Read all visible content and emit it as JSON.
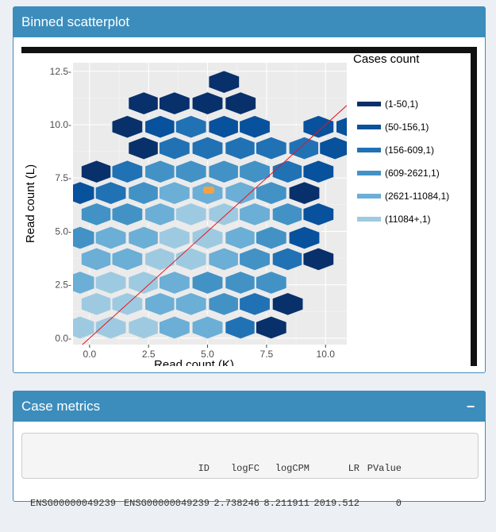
{
  "box1": {
    "title": "Binned scatterplot"
  },
  "chart_data": {
    "type": "hexbin",
    "xlabel": "Read count (K)",
    "ylabel": "Read count (L)",
    "xlim": [
      -0.7,
      10.9
    ],
    "ylim": [
      -0.3,
      12.9
    ],
    "xticks": [
      0.0,
      2.5,
      5.0,
      7.5,
      10.0
    ],
    "yticks": [
      0.0,
      2.5,
      5.0,
      7.5,
      10.0,
      12.5
    ],
    "xtick_labels": [
      "0.0",
      "2.5",
      "5.0",
      "7.5",
      "10.0"
    ],
    "ytick_labels": [
      "0.0-",
      "2.5-",
      "5.0-",
      "7.5-",
      "10.0-",
      "12.5-"
    ],
    "grid": true,
    "panel_color": "#ebebeb",
    "legend": {
      "title": "Cases count",
      "position": "right",
      "labels": [
        "(1-50,1)",
        "(50-156,1)",
        "(156-609,1)",
        "(609-2621,1)",
        "(2621-11084,1)",
        "(11084+,1)"
      ],
      "colors": [
        "#08306b",
        "#08519c",
        "#2171b5",
        "#4292c6",
        "#6baed6",
        "#9ecae1"
      ]
    },
    "reference_line": {
      "intercept": 0,
      "slope": 1,
      "color": "#e8141e"
    },
    "highlight_point": {
      "x": 5.05,
      "y": 6.95,
      "color": "#f5a142"
    },
    "hexbins": [
      [
        -0.4,
        0.5,
        5
      ],
      [
        0.9,
        0.5,
        5
      ],
      [
        2.3,
        0.5,
        5
      ],
      [
        3.6,
        0.5,
        4
      ],
      [
        5.0,
        0.5,
        4
      ],
      [
        6.4,
        0.5,
        2
      ],
      [
        7.7,
        0.5,
        0
      ],
      [
        0.3,
        1.6,
        5
      ],
      [
        1.6,
        1.6,
        5
      ],
      [
        3.0,
        1.6,
        4
      ],
      [
        4.3,
        1.6,
        4
      ],
      [
        5.7,
        1.6,
        3
      ],
      [
        7.0,
        1.6,
        2
      ],
      [
        8.4,
        1.6,
        0
      ],
      [
        -0.4,
        2.6,
        4
      ],
      [
        0.9,
        2.6,
        5
      ],
      [
        2.3,
        2.6,
        5
      ],
      [
        3.6,
        2.6,
        4
      ],
      [
        5.0,
        2.6,
        3
      ],
      [
        6.4,
        2.6,
        3
      ],
      [
        7.7,
        2.6,
        3
      ],
      [
        0.3,
        3.7,
        4
      ],
      [
        1.6,
        3.7,
        4
      ],
      [
        3.0,
        3.7,
        5
      ],
      [
        4.3,
        3.7,
        5
      ],
      [
        5.7,
        3.7,
        4
      ],
      [
        7.0,
        3.7,
        3
      ],
      [
        8.4,
        3.7,
        2
      ],
      [
        9.7,
        3.7,
        0
      ],
      [
        -0.4,
        4.7,
        3
      ],
      [
        0.9,
        4.7,
        4
      ],
      [
        2.3,
        4.7,
        4
      ],
      [
        3.6,
        4.7,
        5
      ],
      [
        5.0,
        4.7,
        5
      ],
      [
        6.4,
        4.7,
        4
      ],
      [
        7.7,
        4.7,
        3
      ],
      [
        9.1,
        4.7,
        1
      ],
      [
        0.3,
        5.8,
        3
      ],
      [
        1.6,
        5.8,
        3
      ],
      [
        3.0,
        5.8,
        4
      ],
      [
        4.3,
        5.8,
        5
      ],
      [
        5.7,
        5.8,
        5
      ],
      [
        7.0,
        5.8,
        4
      ],
      [
        8.4,
        5.8,
        3
      ],
      [
        9.7,
        5.8,
        1
      ],
      [
        -0.4,
        6.8,
        1
      ],
      [
        0.9,
        6.8,
        2
      ],
      [
        2.3,
        6.8,
        3
      ],
      [
        3.6,
        6.8,
        4
      ],
      [
        5.0,
        6.8,
        4
      ],
      [
        6.4,
        6.8,
        4
      ],
      [
        7.7,
        6.8,
        3
      ],
      [
        9.1,
        6.8,
        0
      ],
      [
        0.3,
        7.8,
        0
      ],
      [
        1.6,
        7.8,
        2
      ],
      [
        3.0,
        7.8,
        3
      ],
      [
        4.3,
        7.8,
        3
      ],
      [
        5.7,
        7.8,
        3
      ],
      [
        7.0,
        7.8,
        3
      ],
      [
        8.4,
        7.8,
        2
      ],
      [
        9.7,
        7.8,
        1
      ],
      [
        2.3,
        8.9,
        0
      ],
      [
        3.6,
        8.9,
        2
      ],
      [
        5.0,
        8.9,
        2
      ],
      [
        6.4,
        8.9,
        2
      ],
      [
        7.7,
        8.9,
        2
      ],
      [
        9.1,
        8.9,
        2
      ],
      [
        10.4,
        8.9,
        1
      ],
      [
        1.6,
        9.9,
        0
      ],
      [
        3.0,
        9.9,
        1
      ],
      [
        4.3,
        9.9,
        2
      ],
      [
        5.7,
        9.9,
        1
      ],
      [
        7.0,
        9.9,
        1
      ],
      [
        9.7,
        9.9,
        1
      ],
      [
        11.1,
        9.9,
        1
      ],
      [
        2.3,
        11.0,
        0
      ],
      [
        3.6,
        11.0,
        0
      ],
      [
        5.0,
        11.0,
        0
      ],
      [
        6.4,
        11.0,
        0
      ],
      [
        5.7,
        12.0,
        0
      ]
    ]
  },
  "box2": {
    "title": "Case metrics",
    "collapse_symbol": "−",
    "table": {
      "header": [
        "",
        "ID",
        "logFC",
        "logCPM",
        "LR",
        "PValue"
      ],
      "row": [
        "ENSG00000049239",
        "ENSG00000049239",
        "2.738246",
        "8.211911",
        "2019.512",
        "0"
      ]
    }
  }
}
